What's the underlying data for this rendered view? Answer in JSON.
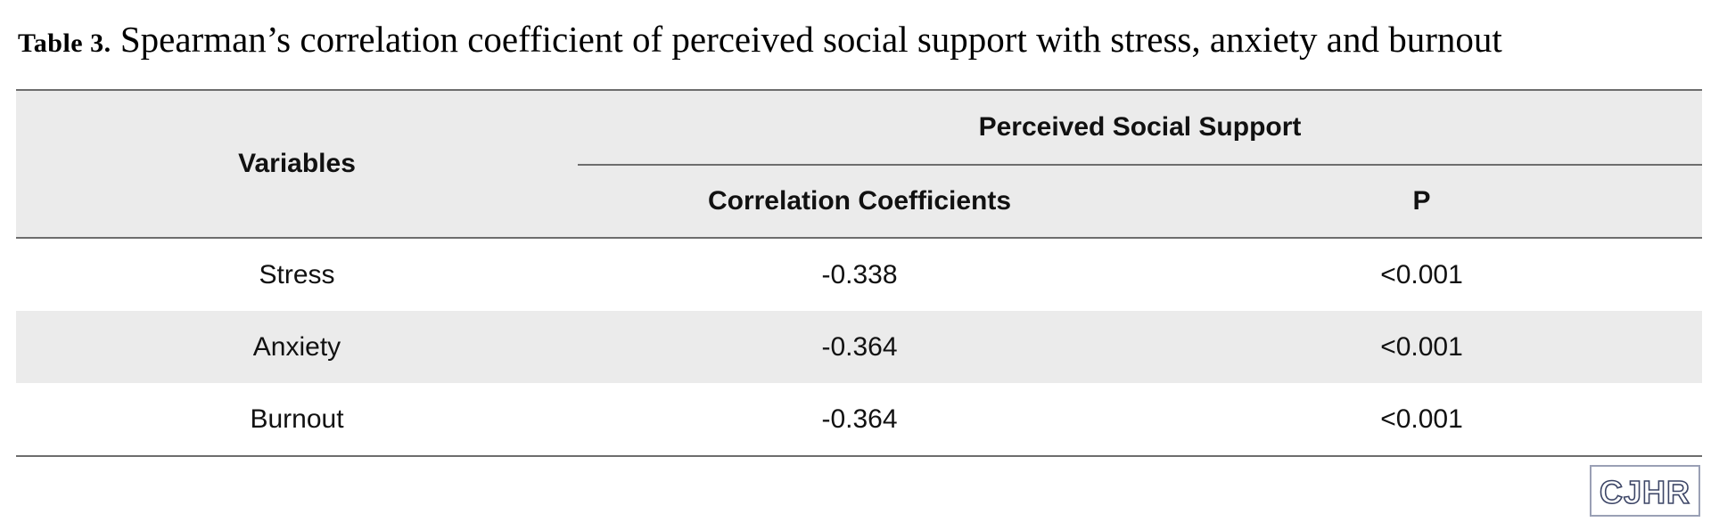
{
  "caption": {
    "label": "Table 3.",
    "text": " Spearman’s correlation coefficient of perceived social support with stress, anxiety and burnout"
  },
  "table": {
    "row_header": "Variables",
    "group_header": "Perceived Social Support",
    "columns": [
      "Correlation Coefficients",
      "P"
    ],
    "rows": [
      {
        "variable": "Stress",
        "coefficient": "-0.338",
        "p": "<0.001"
      },
      {
        "variable": "Anxiety",
        "coefficient": "-0.364",
        "p": "<0.001"
      },
      {
        "variable": "Burnout",
        "coefficient": "-0.364",
        "p": "<0.001"
      }
    ]
  },
  "logo": {
    "text": "CJHR",
    "color": "#3c4566",
    "accent": "#2b2f8a"
  }
}
